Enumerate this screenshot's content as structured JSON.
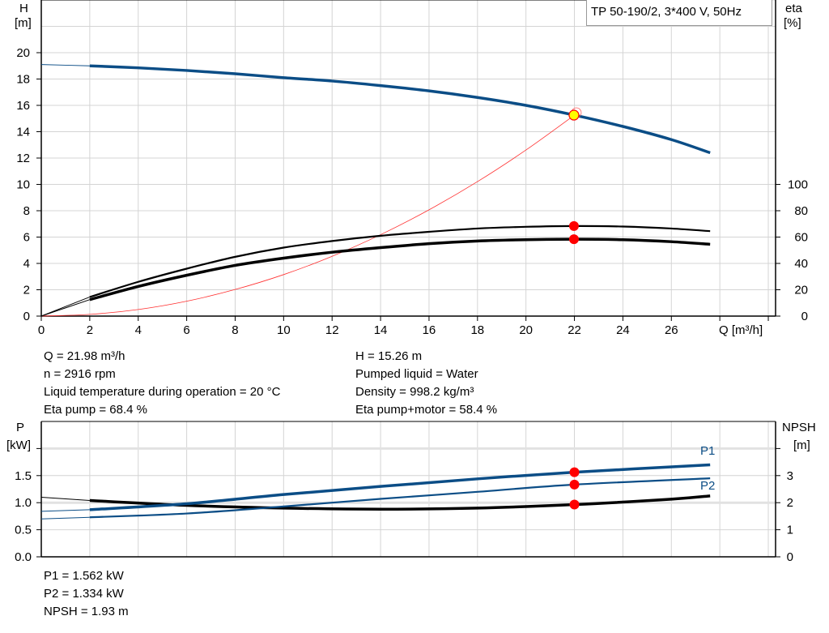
{
  "chart_data": [
    {
      "type": "line",
      "title": "TP 50-190/2, 3*400 V, 50Hz",
      "xlabel": "Q [m³/h]",
      "ylabel": "H\n[m]",
      "y2label": "eta\n[%]",
      "xlim": [
        0,
        30.3
      ],
      "ylim": [
        0,
        24
      ],
      "y2lim": [
        0,
        240
      ],
      "xticks": [
        0,
        2,
        4,
        6,
        8,
        10,
        12,
        14,
        16,
        18,
        20,
        22,
        24,
        26
      ],
      "yticks": [
        0,
        2,
        4,
        6,
        8,
        10,
        12,
        14,
        16,
        18,
        20
      ],
      "y2ticks": [
        0,
        20,
        40,
        60,
        80,
        100
      ],
      "grid": true,
      "colors": {
        "head": "#0b4d86",
        "eta": "#000000",
        "system": "#ff3030",
        "duty_point": "#ffff00",
        "marker": "#ff0000"
      },
      "series": [
        {
          "axis": "H",
          "x": [
            0,
            2,
            4,
            6,
            8,
            10,
            12,
            14,
            16,
            18,
            20,
            22,
            24,
            26,
            27.6
          ],
          "values": [
            19.1,
            19.0,
            18.85,
            18.65,
            18.4,
            18.1,
            17.85,
            17.5,
            17.1,
            16.6,
            16.0,
            15.26,
            14.4,
            13.4,
            12.4
          ]
        },
        {
          "axis": "eta",
          "x": [
            0,
            2,
            4,
            6,
            8,
            10,
            12,
            14,
            16,
            18,
            20,
            22,
            24,
            26,
            27.6
          ],
          "values": [
            0,
            14.5,
            26,
            36,
            45,
            52,
            57,
            61,
            64,
            66.5,
            67.8,
            68.4,
            68,
            66.5,
            64.5
          ]
        },
        {
          "axis": "eta",
          "x": [
            0,
            2,
            4,
            6,
            8,
            10,
            12,
            14,
            16,
            18,
            20,
            22,
            24,
            26,
            27.6
          ],
          "values": [
            0,
            12.5,
            22.5,
            31,
            38.5,
            44,
            48.5,
            52,
            55,
            57,
            58,
            58.4,
            58,
            56.5,
            54.5
          ]
        },
        {
          "axis": "H",
          "x": [
            0,
            2,
            4,
            6,
            8,
            10,
            12,
            14,
            16,
            18,
            20,
            22
          ],
          "values": [
            0,
            0.13,
            0.5,
            1.13,
            2.02,
            3.15,
            4.54,
            6.18,
            8.07,
            10.21,
            12.61,
            15.26
          ]
        }
      ],
      "duty_point": {
        "Q": 21.98,
        "H": 15.26,
        "eta_pump": 68.4,
        "eta_total": 58.4
      }
    },
    {
      "type": "line",
      "ylabel": "P\n[kW]",
      "y2label": "NPSH\n[m]",
      "xlim": [
        0,
        30.3
      ],
      "ylim": [
        0,
        2.5
      ],
      "y2lim": [
        0,
        5
      ],
      "yticks": [
        "0.0",
        "0.5",
        "1.0",
        "1.5"
      ],
      "y2ticks": [
        "0",
        "1",
        "2",
        "3"
      ],
      "grid": true,
      "series": [
        {
          "name": "P1",
          "axis": "P",
          "x": [
            0,
            2,
            6,
            10,
            14,
            18,
            22,
            27.6
          ],
          "values": [
            0.84,
            0.87,
            0.98,
            1.15,
            1.3,
            1.44,
            1.562,
            1.7
          ]
        },
        {
          "name": "P2",
          "axis": "P",
          "x": [
            0,
            2,
            6,
            10,
            14,
            18,
            22,
            27.6
          ],
          "values": [
            0.7,
            0.73,
            0.8,
            0.93,
            1.07,
            1.2,
            1.334,
            1.45
          ]
        },
        {
          "axis": "NPSH",
          "x": [
            0,
            2,
            6,
            10,
            14,
            18,
            22,
            26,
            27.6
          ],
          "values": [
            2.2,
            2.08,
            1.9,
            1.8,
            1.76,
            1.8,
            1.93,
            2.13,
            2.25
          ]
        }
      ]
    }
  ],
  "info": {
    "left": [
      "Q = 21.98 m³/h",
      "n = 2916 rpm",
      "Liquid temperature during operation = 20 °C",
      "Eta pump = 68.4 %"
    ],
    "right": [
      "H = 15.26 m",
      "Pumped liquid = Water",
      "Density = 998.2 kg/m³",
      "Eta pump+motor = 58.4 %"
    ],
    "bottom": [
      "P1 = 1.562 kW",
      "P2 = 1.334 kW",
      "NPSH = 1.93 m"
    ]
  },
  "labels": {
    "H": "H",
    "Hunit": "[m]",
    "eta": "eta",
    "etaunit": "[%]",
    "P": "P",
    "Punit": "[kW]",
    "NPSH": "NPSH",
    "NPSHunit": "[m]",
    "Q": "Q [m³/h]",
    "P1": "P1",
    "P2": "P2"
  }
}
